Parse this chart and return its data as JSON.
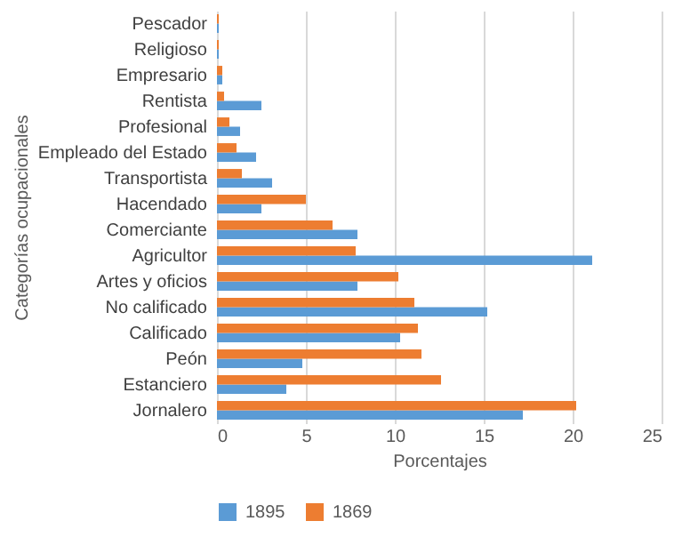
{
  "chart_data": {
    "type": "bar",
    "orientation": "horizontal",
    "xlabel": "Porcentajes",
    "ylabel": "Categorías ocupacionales",
    "categories": [
      "Pescador",
      "Religioso",
      "Empresario",
      "Rentista",
      "Profesional",
      "Empleado del Estado",
      "Transportista",
      "Hacendado",
      "Comerciante",
      "Agricultor",
      "Artes y oficios",
      "No calificado",
      "Calificado",
      "Peón",
      "Estanciero",
      "Jornalero"
    ],
    "series": [
      {
        "name": "1895",
        "color": "#5b9bd5",
        "values": [
          0.1,
          0.1,
          0.3,
          2.5,
          1.3,
          2.2,
          3.1,
          2.5,
          7.9,
          21.1,
          7.9,
          15.2,
          10.3,
          4.8,
          3.9,
          17.2
        ]
      },
      {
        "name": "1869",
        "color": "#ed7d31",
        "values": [
          0.1,
          0.1,
          0.3,
          0.4,
          0.7,
          1.1,
          1.4,
          5.0,
          6.5,
          7.8,
          10.2,
          11.1,
          11.3,
          11.5,
          12.6,
          20.2
        ]
      }
    ],
    "xlim": [
      0,
      25
    ],
    "xticks": [
      0,
      5,
      10,
      15,
      20,
      25
    ],
    "grid": "x",
    "legend": "bottom"
  }
}
